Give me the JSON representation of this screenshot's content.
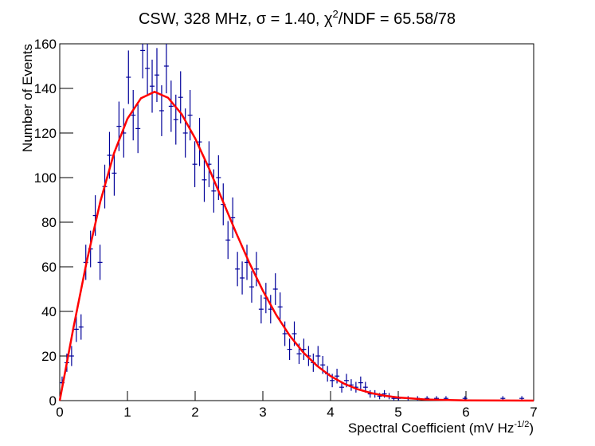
{
  "chart_data": {
    "type": "histogram_errors",
    "title": [
      "CSW, 328 MHz, σ = 1.40, χ",
      "2",
      "/NDF = 65.58/78"
    ],
    "x_label": [
      "Spectral Coefficient (mV Hz",
      "-1/2",
      ")"
    ],
    "y_label": "Number of Events",
    "xlim": [
      0,
      7
    ],
    "xticks": [
      0,
      1,
      2,
      3,
      4,
      5,
      6,
      7
    ],
    "ylim": [
      0,
      160
    ],
    "yticks": [
      0,
      20,
      40,
      60,
      80,
      100,
      120,
      140,
      160
    ],
    "series": [
      {
        "name": "data",
        "color": "#000099",
        "x": [
          0.035,
          0.105,
          0.175,
          0.245,
          0.315,
          0.385,
          0.455,
          0.525,
          0.595,
          0.665,
          0.735,
          0.805,
          0.875,
          0.945,
          1.015,
          1.085,
          1.155,
          1.225,
          1.295,
          1.365,
          1.435,
          1.505,
          1.575,
          1.645,
          1.715,
          1.785,
          1.855,
          1.925,
          1.995,
          2.065,
          2.135,
          2.205,
          2.275,
          2.345,
          2.415,
          2.485,
          2.555,
          2.625,
          2.695,
          2.765,
          2.835,
          2.905,
          2.975,
          3.045,
          3.115,
          3.185,
          3.255,
          3.325,
          3.395,
          3.465,
          3.535,
          3.605,
          3.675,
          3.745,
          3.815,
          3.885,
          3.955,
          4.025,
          4.095,
          4.165,
          4.235,
          4.305,
          4.375,
          4.445,
          4.515,
          4.585,
          4.655,
          4.725,
          4.795,
          4.865,
          4.935,
          5.005,
          5.145,
          5.285,
          5.425,
          5.565,
          5.705,
          5.985,
          6.545,
          6.825
        ],
        "values": [
          8,
          17,
          20,
          32,
          33,
          62,
          68,
          83,
          62,
          96,
          110,
          102,
          123,
          120,
          145,
          128,
          122,
          157,
          149,
          141,
          146,
          130,
          150,
          132,
          126,
          136,
          120,
          128,
          106,
          116,
          99,
          106,
          94,
          100,
          88,
          72,
          82,
          59,
          55,
          62,
          51,
          59,
          41,
          46,
          41,
          50,
          42,
          30,
          23,
          30,
          21,
          23,
          20,
          17,
          20,
          16,
          12,
          9,
          11,
          6,
          9,
          7,
          6,
          8,
          6,
          3,
          3,
          2,
          3,
          2,
          1,
          1,
          1,
          1,
          1,
          1,
          1,
          1,
          1,
          1
        ],
        "errors": [
          2.8,
          4.1,
          4.5,
          5.7,
          5.7,
          7.9,
          8.2,
          9.1,
          7.9,
          9.8,
          10.5,
          10.1,
          11.1,
          11,
          12,
          11.3,
          11,
          12.5,
          12.2,
          11.9,
          12.1,
          11.4,
          12.2,
          11.5,
          11.2,
          11.7,
          11,
          11.3,
          10.3,
          10.8,
          9.9,
          10.3,
          9.7,
          10,
          9.4,
          8.5,
          9.1,
          7.7,
          7.4,
          7.9,
          7.1,
          7.7,
          6.4,
          6.8,
          6.4,
          7.1,
          6.5,
          5.5,
          4.8,
          5.5,
          4.6,
          4.8,
          4.5,
          4.1,
          4.5,
          4,
          3.5,
          3,
          3.3,
          2.4,
          3,
          2.6,
          2.4,
          2.8,
          2.4,
          1.7,
          1.7,
          1.4,
          1.7,
          1.4,
          1,
          1,
          1,
          1,
          1,
          1,
          1,
          1,
          1,
          1
        ]
      },
      {
        "name": "fit",
        "color": "#ff0000",
        "x": [
          0,
          0.2,
          0.4,
          0.6,
          0.8,
          1.0,
          1.2,
          1.4,
          1.6,
          1.8,
          2.0,
          2.2,
          2.4,
          2.6,
          2.8,
          3.0,
          3.2,
          3.4,
          3.6,
          3.8,
          4.0,
          4.2,
          4.4,
          4.6,
          4.8,
          5.0,
          5.4,
          6.0,
          7.0
        ],
        "values": [
          0,
          32.3,
          62.6,
          89.3,
          110.8,
          126.4,
          135.6,
          138.5,
          135.8,
          128.5,
          117.6,
          104.4,
          90.1,
          75.6,
          61.8,
          49.3,
          38.3,
          29.0,
          21.5,
          15.6,
          11.0,
          7.6,
          5.1,
          3.4,
          2.2,
          1.4,
          0.5,
          0.1,
          0
        ]
      }
    ]
  }
}
